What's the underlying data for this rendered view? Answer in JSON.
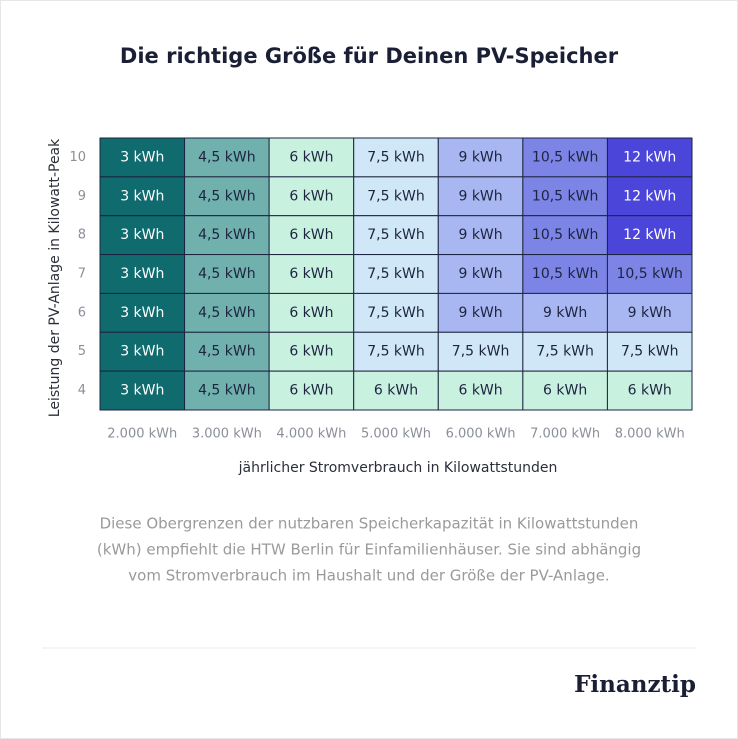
{
  "chart_data": {
    "type": "heatmap",
    "title": "Die richtige Größe für Deinen PV-Speicher",
    "x_label": "jährlicher Stromverbrauch in Kilowattstunden",
    "y_label": "Leistung der PV-Anlage in Kilowatt-Peak",
    "x_categories": [
      "2.000 kWh",
      "3.000 kWh",
      "4.000 kWh",
      "5.000 kWh",
      "6.000 kWh",
      "7.000 kWh",
      "8.000 kWh"
    ],
    "y_categories": [
      10,
      9,
      8,
      7,
      6,
      5,
      4
    ],
    "values": [
      [
        3,
        4.5,
        6,
        7.5,
        9,
        10.5,
        12
      ],
      [
        3,
        4.5,
        6,
        7.5,
        9,
        10.5,
        12
      ],
      [
        3,
        4.5,
        6,
        7.5,
        9,
        10.5,
        12
      ],
      [
        3,
        4.5,
        6,
        7.5,
        9,
        10.5,
        10.5
      ],
      [
        3,
        4.5,
        6,
        7.5,
        9,
        9,
        9
      ],
      [
        3,
        4.5,
        6,
        7.5,
        7.5,
        7.5,
        7.5
      ],
      [
        3,
        4.5,
        6,
        6,
        6,
        6,
        6
      ]
    ],
    "value_labels": [
      [
        "3 kWh",
        "4,5 kWh",
        "6 kWh",
        "7,5 kWh",
        "9 kWh",
        "10,5 kWh",
        "12 kWh"
      ],
      [
        "3 kWh",
        "4,5 kWh",
        "6 kWh",
        "7,5 kWh",
        "9 kWh",
        "10,5 kWh",
        "12 kWh"
      ],
      [
        "3 kWh",
        "4,5 kWh",
        "6 kWh",
        "7,5 kWh",
        "9 kWh",
        "10,5 kWh",
        "12 kWh"
      ],
      [
        "3 kWh",
        "4,5 kWh",
        "6 kWh",
        "7,5 kWh",
        "9 kWh",
        "10,5 kWh",
        "10,5 kWh"
      ],
      [
        "3 kWh",
        "4,5 kWh",
        "6 kWh",
        "7,5 kWh",
        "9 kWh",
        "9 kWh",
        "9 kWh"
      ],
      [
        "3 kWh",
        "4,5 kWh",
        "6 kWh",
        "7,5 kWh",
        "7,5 kWh",
        "7,5 kWh",
        "7,5 kWh"
      ],
      [
        "3 kWh",
        "4,5 kWh",
        "6 kWh",
        "6 kWh",
        "6 kWh",
        "6 kWh",
        "6 kWh"
      ]
    ],
    "colors": [
      [
        "#0f6b6e",
        "#70b1ae",
        "#c9f1df",
        "#d0e7f7",
        "#a8b7f1",
        "#7c85e6",
        "#4b45d9"
      ],
      [
        "#0f6b6e",
        "#70b1ae",
        "#c9f1df",
        "#d0e7f7",
        "#a8b7f1",
        "#7c85e6",
        "#4b45d9"
      ],
      [
        "#0f6b6e",
        "#70b1ae",
        "#c9f1df",
        "#d0e7f7",
        "#a8b7f1",
        "#7c85e6",
        "#4b45d9"
      ],
      [
        "#0f6b6e",
        "#70b1ae",
        "#c9f1df",
        "#d0e7f7",
        "#a8b7f1",
        "#7c85e6",
        "#7c85e6"
      ],
      [
        "#0f6b6e",
        "#70b1ae",
        "#c9f1df",
        "#d0e7f7",
        "#a8b7f1",
        "#a8b7f1",
        "#a8b7f1"
      ],
      [
        "#0f6b6e",
        "#70b1ae",
        "#c9f1df",
        "#d0e7f7",
        "#d0e7f7",
        "#d0e7f7",
        "#d0e7f7"
      ],
      [
        "#0f6b6e",
        "#70b1ae",
        "#c9f1df",
        "#c9f1df",
        "#c9f1df",
        "#c9f1df",
        "#c9f1df"
      ]
    ]
  },
  "caption": [
    "Diese Obergrenzen der nutzbaren Speicherkapazität in Kilowattstunden",
    "(kWh) empfiehlt die HTW Berlin für Einfamilienhäuser. Sie sind abhängig",
    "vom Stromverbrauch im Haushalt und der Größe der PV-Anlage."
  ],
  "brand": "Finanztip"
}
